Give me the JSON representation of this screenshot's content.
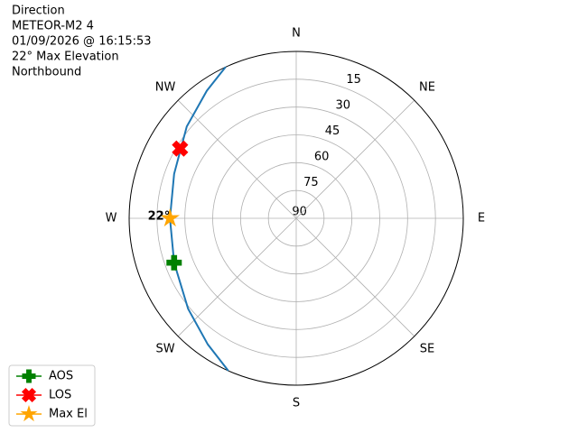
{
  "chart_data": {
    "type": "polar",
    "title": [
      "Direction",
      "METEOR-M2 4",
      "01/09/2026 @ 16:15:53",
      "22° Max Elevation",
      "Northbound"
    ],
    "directions": [
      "N",
      "NE",
      "E",
      "SE",
      "S",
      "SW",
      "W",
      "NW"
    ],
    "rlim": [
      90,
      0
    ],
    "rticks": [
      15,
      30,
      45,
      60,
      75,
      90
    ],
    "grid": true,
    "track": {
      "color": "#1f77b4",
      "az": [
        204,
        215,
        230,
        250,
        270,
        290,
        310,
        325,
        335
      ],
      "el": [
        0,
        7,
        14,
        20,
        22,
        20,
        13,
        6,
        0
      ]
    },
    "series": [
      {
        "name": "AOS",
        "color": "#008000",
        "marker": "plus",
        "az": 250,
        "el": 20
      },
      {
        "name": "LOS",
        "color": "#ff0000",
        "marker": "x",
        "az": 301,
        "el": 17
      },
      {
        "name": "Max El",
        "color": "#ffa500",
        "marker": "star",
        "az": 270,
        "el": 22
      }
    ],
    "annotation": {
      "text": "22°",
      "az": 270,
      "el": 22
    },
    "legend": "lower left"
  }
}
